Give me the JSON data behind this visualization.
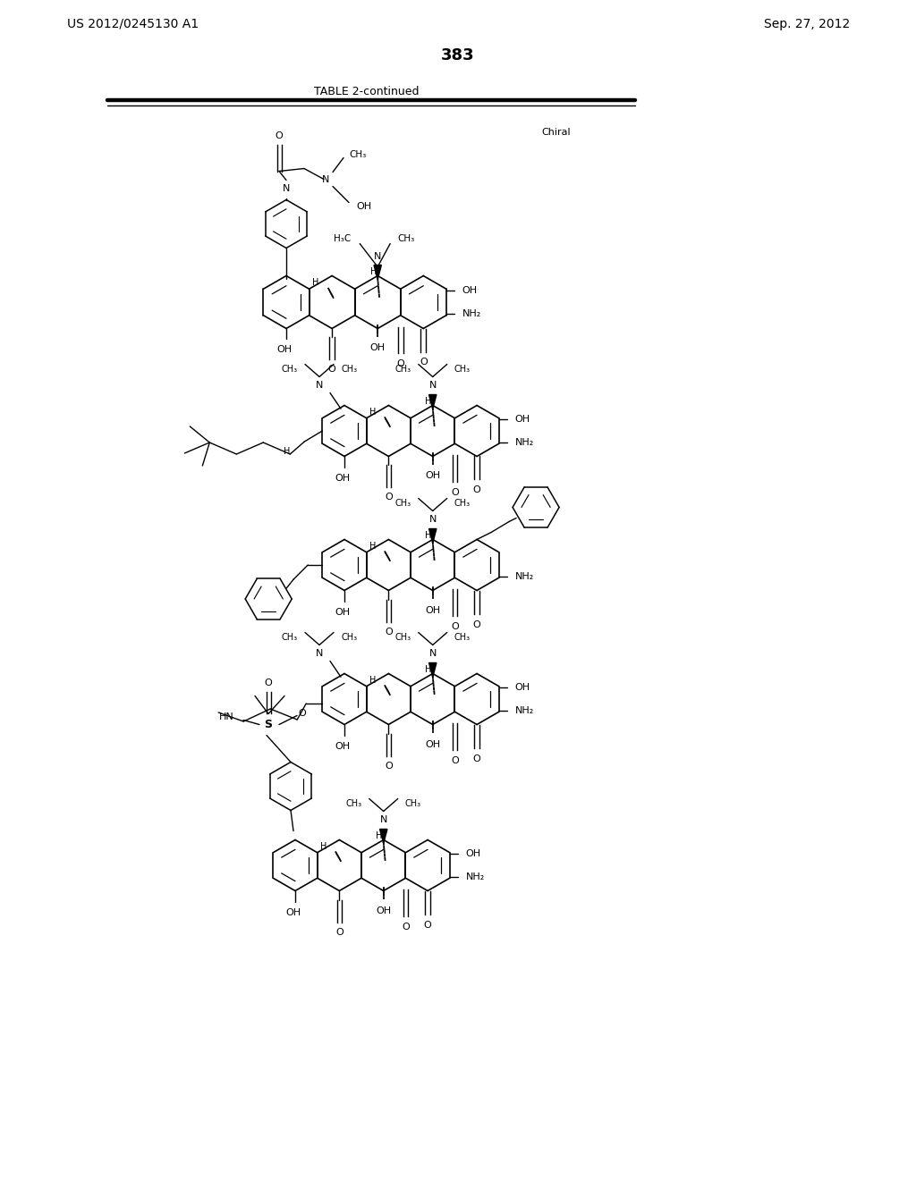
{
  "left_header": "US 2012/0245130 A1",
  "right_header": "Sep. 27, 2012",
  "page_number": "383",
  "table_title": "TABLE 2-continued",
  "background": "#ffffff",
  "line_color": "#000000"
}
